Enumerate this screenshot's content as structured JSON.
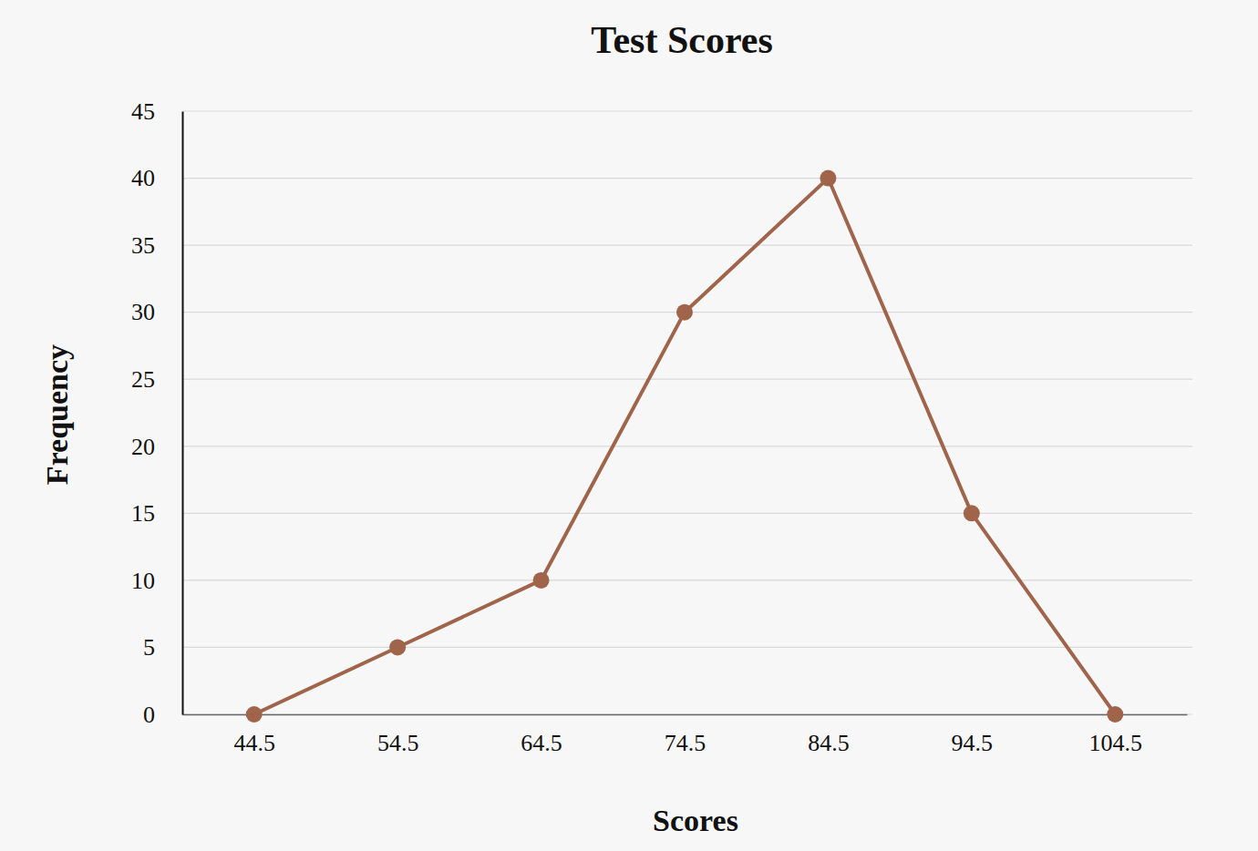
{
  "chart_data": {
    "type": "line",
    "title": "Test Scores",
    "x_label": "Scores",
    "y_label": "Frequency",
    "x": [
      44.5,
      54.5,
      64.5,
      74.5,
      84.5,
      94.5,
      104.5
    ],
    "values": [
      0,
      5,
      10,
      30,
      40,
      15,
      0
    ],
    "color": "#a0644b",
    "marker": "circle",
    "xlim": [
      39.5,
      109.5
    ],
    "xticks": [
      44.5,
      54.5,
      64.5,
      74.5,
      84.5,
      94.5,
      104.5
    ],
    "ylim": [
      0,
      45
    ],
    "yticks": [
      0,
      5,
      10,
      15,
      20,
      25,
      30,
      35,
      40,
      45
    ],
    "grid": true
  }
}
